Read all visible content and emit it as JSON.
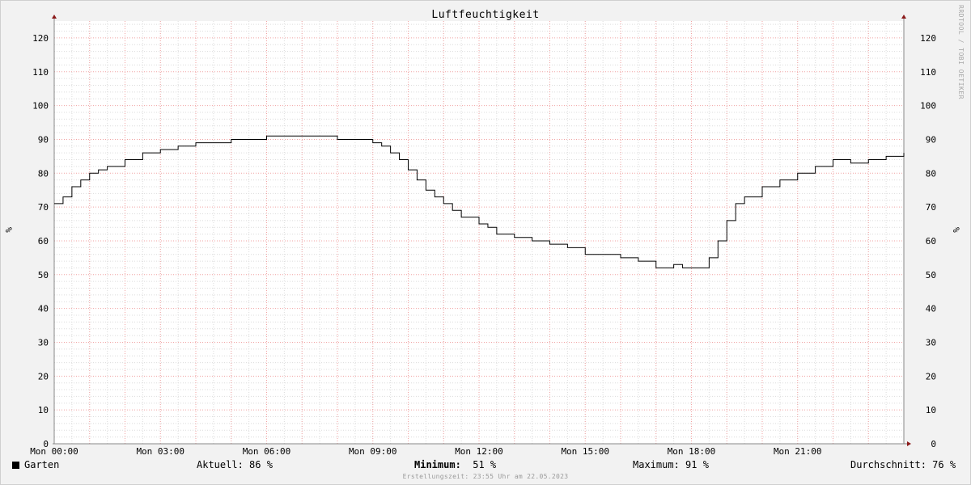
{
  "chart_data": {
    "type": "line",
    "title": "Luftfeuchtigkeit",
    "ylabel": "%",
    "ylim": [
      0,
      125
    ],
    "yticks": [
      0,
      10,
      20,
      30,
      40,
      50,
      60,
      70,
      80,
      90,
      100,
      110,
      120
    ],
    "xlim": [
      0,
      24
    ],
    "xtick_labels": [
      "Mon 00:00",
      "Mon 03:00",
      "Mon 06:00",
      "Mon 09:00",
      "Mon 12:00",
      "Mon 15:00",
      "Mon 18:00",
      "Mon 21:00"
    ],
    "xtick_hours": [
      0,
      3,
      6,
      9,
      12,
      15,
      18,
      21
    ],
    "series": [
      {
        "name": "Garten",
        "color": "#000000",
        "x": [
          0,
          0.25,
          0.5,
          0.75,
          1.0,
          1.25,
          1.5,
          2.0,
          2.5,
          3.0,
          3.5,
          4.0,
          4.5,
          5.0,
          6.0,
          7.0,
          7.5,
          8.0,
          8.5,
          9.0,
          9.25,
          9.5,
          9.75,
          10.0,
          10.25,
          10.5,
          10.75,
          11.0,
          11.25,
          11.5,
          12.0,
          12.25,
          12.5,
          13.0,
          13.5,
          14.0,
          14.5,
          15.0,
          15.5,
          16.0,
          16.5,
          17.0,
          17.25,
          17.5,
          17.75,
          18.0,
          18.25,
          18.5,
          18.75,
          19.0,
          19.25,
          19.5,
          20.0,
          20.5,
          21.0,
          21.5,
          22.0,
          22.5,
          23.0,
          23.5,
          24.0
        ],
        "values": [
          71,
          73,
          76,
          78,
          80,
          81,
          82,
          84,
          86,
          87,
          88,
          89,
          89,
          90,
          91,
          91,
          91,
          90,
          90,
          89,
          88,
          86,
          84,
          81,
          78,
          75,
          73,
          71,
          69,
          67,
          65,
          64,
          62,
          61,
          60,
          59,
          58,
          56,
          56,
          55,
          54,
          52,
          52,
          53,
          52,
          52,
          52,
          55,
          60,
          66,
          71,
          73,
          76,
          78,
          80,
          82,
          84,
          83,
          84,
          85,
          86
        ]
      }
    ],
    "grid": true,
    "legend": "bottom-left"
  },
  "page": {
    "title": "Luftfeuchtigkeit",
    "watermark": "RRDTOOL / TOBI OETIKER",
    "unit_left": "%",
    "unit_right": "%"
  },
  "legend": {
    "series_name": "Garten",
    "current": "Aktuell:  86 %",
    "minimum_label": "Minimum:",
    "minimum_value": "51 %",
    "maximum": "Maximum:  91 %",
    "average": "Durchschnitt:  76 %"
  },
  "footer": "Erstellungszeit: 23:55 Uhr am 22.05.2023"
}
